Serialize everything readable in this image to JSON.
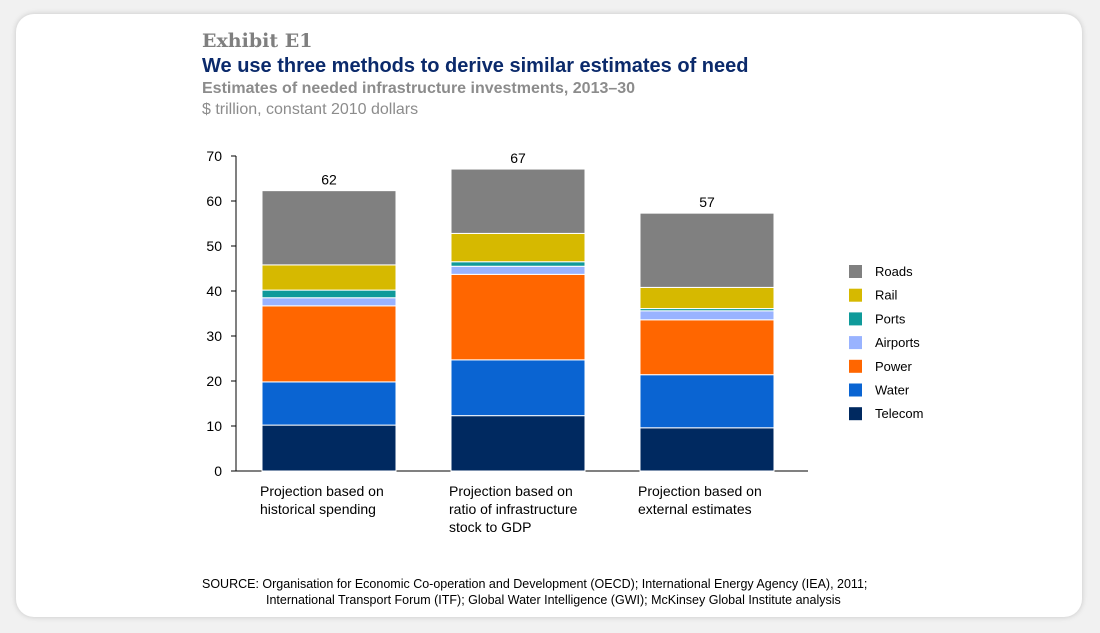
{
  "exhibit_label": "Exhibit E1",
  "title": "We use three methods to derive similar estimates of need",
  "subtitle": "Estimates of needed infrastructure investments, 2013–30",
  "units": "$ trillion, constant 2010 dollars",
  "source": {
    "line1": "SOURCE: Organisation for Economic Co-operation and Development (OECD); International Energy Agency (IEA), 2011;",
    "line2": "International Transport Forum (ITF); Global Water Intelligence (GWI); McKinsey Global Institute analysis"
  },
  "chart_data": {
    "type": "bar",
    "stacked": true,
    "title": "Estimates of needed infrastructure investments, 2013–30",
    "ylabel": "$ trillion, constant 2010 dollars",
    "ylim": [
      0,
      70
    ],
    "yticks": [
      0,
      10,
      20,
      30,
      40,
      50,
      60,
      70
    ],
    "legend_position": "right",
    "categories": [
      [
        "Projection based on",
        "historical spending"
      ],
      [
        "Projection based on",
        "ratio of infrastructure",
        "stock to GDP"
      ],
      [
        "Projection based on",
        "external estimates"
      ]
    ],
    "totals": [
      "62",
      "67",
      "57"
    ],
    "series": [
      {
        "name": "Telecom",
        "color": "#002960",
        "values": [
          10.2,
          12.3,
          9.6
        ]
      },
      {
        "name": "Water",
        "color": "#0a64d2",
        "values": [
          9.6,
          12.4,
          11.8
        ]
      },
      {
        "name": "Power",
        "color": "#ff6600",
        "values": [
          16.9,
          19.0,
          12.2
        ]
      },
      {
        "name": "Airports",
        "color": "#99b3ff",
        "values": [
          1.8,
          1.8,
          2.0
        ]
      },
      {
        "name": "Ports",
        "color": "#0f9a9a",
        "values": [
          1.7,
          1.0,
          0.5
        ]
      },
      {
        "name": "Rail",
        "color": "#d6b900",
        "values": [
          5.6,
          6.3,
          4.7
        ]
      },
      {
        "name": "Roads",
        "color": "#808080",
        "values": [
          16.5,
          14.3,
          16.5
        ]
      }
    ],
    "legend_order": [
      "Roads",
      "Rail",
      "Ports",
      "Airports",
      "Power",
      "Water",
      "Telecom"
    ]
  }
}
